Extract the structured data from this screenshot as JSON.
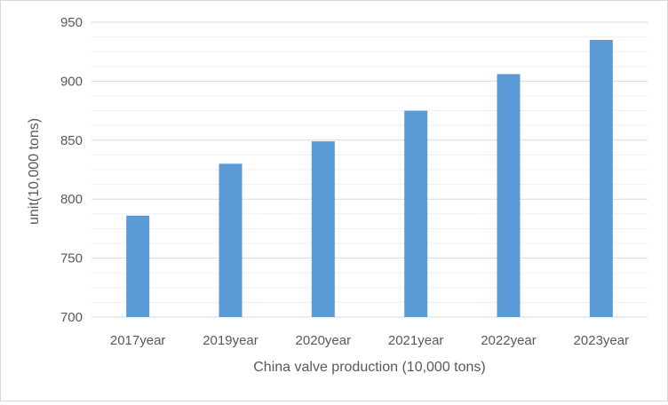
{
  "chart_data": {
    "type": "bar",
    "title": "",
    "xlabel": "China valve production (10,000 tons)",
    "ylabel": "unit(10,000 tons)",
    "categories": [
      "2017year",
      "2019year",
      "2020year",
      "2021year",
      "2022year",
      "2023year"
    ],
    "values": [
      786,
      830,
      849,
      875,
      906,
      935
    ],
    "ylim": [
      700,
      950
    ],
    "yticks": [
      700,
      750,
      800,
      850,
      900,
      950
    ],
    "grid": true,
    "legend": "none",
    "colors": {
      "bar": "#5b9bd5",
      "major_grid": "#d9d9d9",
      "minor_grid": "#efefef",
      "axis": "#d9d9d9",
      "text": "#595959"
    }
  }
}
